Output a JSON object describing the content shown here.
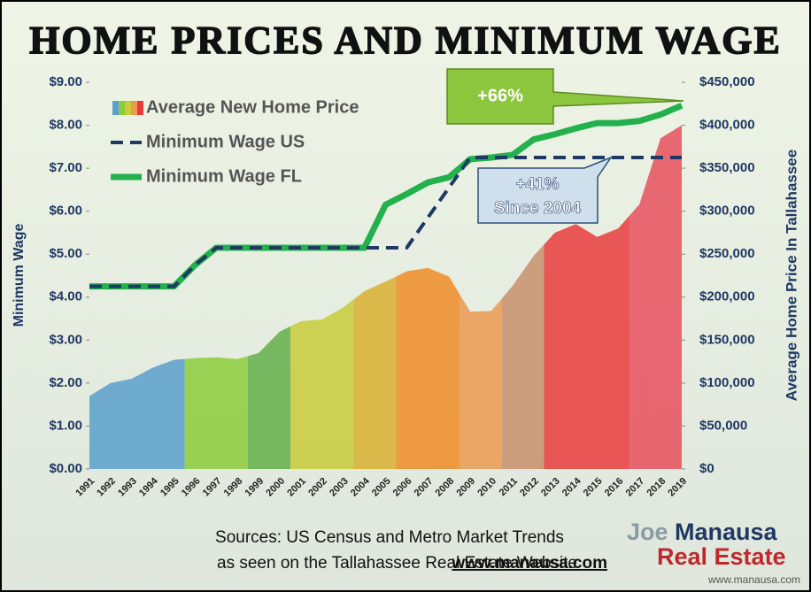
{
  "chart_data": {
    "type": "line",
    "title": "HOME PRICES AND MINIMUM WAGE",
    "ylabel": "Minimum Wage",
    "y2label": "Average Home Price In Tallahassee",
    "categories": [
      "1991",
      "1992",
      "1993",
      "1994",
      "1995",
      "1996",
      "1997",
      "1998",
      "1999",
      "2000",
      "2001",
      "2002",
      "2003",
      "2004",
      "2005",
      "2006",
      "2007",
      "2008",
      "2009",
      "2010",
      "2011",
      "2012",
      "2013",
      "2014",
      "2015",
      "2016",
      "2017",
      "2018",
      "2019"
    ],
    "ylim": [
      0,
      9
    ],
    "yticks": [
      {
        "value": 0,
        "label": "$0.00"
      },
      {
        "value": 1,
        "label": "$1.00"
      },
      {
        "value": 2,
        "label": "$2.00"
      },
      {
        "value": 3,
        "label": "$3.00"
      },
      {
        "value": 4,
        "label": "$4.00"
      },
      {
        "value": 5,
        "label": "$5.00"
      },
      {
        "value": 6,
        "label": "$6.00"
      },
      {
        "value": 7,
        "label": "$7.00"
      },
      {
        "value": 8,
        "label": "$8.00"
      },
      {
        "value": 9,
        "label": "$9.00"
      }
    ],
    "y2lim": [
      0,
      450000
    ],
    "y2ticks": [
      {
        "value": 0,
        "label": "$0"
      },
      {
        "value": 50000,
        "label": "$50,000"
      },
      {
        "value": 100000,
        "label": "$100,000"
      },
      {
        "value": 150000,
        "label": "$150,000"
      },
      {
        "value": 200000,
        "label": "$200,000"
      },
      {
        "value": 250000,
        "label": "$250,000"
      },
      {
        "value": 300000,
        "label": "$300,000"
      },
      {
        "value": 350000,
        "label": "$350,000"
      },
      {
        "value": 400000,
        "label": "$400,000"
      },
      {
        "value": 450000,
        "label": "$450,000"
      }
    ],
    "series": [
      {
        "name": "Average New Home Price",
        "type": "area",
        "axis": "y2",
        "colors": [
          "#5aa0cc",
          "#5aa0cc",
          "#5aa0cc",
          "#5aa0cc",
          "#5aa0cc",
          "#8ccc3c",
          "#8ccc3c",
          "#8ccc3c",
          "#62b04a",
          "#62b04a",
          "#c8cc3a",
          "#c8cc3a",
          "#c8cc3a",
          "#d8b030",
          "#d8b030",
          "#f08c28",
          "#f08c28",
          "#f08c28",
          "#ec9a50",
          "#ec9a50",
          "#c8906c",
          "#c8906c",
          "#e83c3c",
          "#e83c3c",
          "#e83c3c",
          "#e83c3c",
          "#e8505e",
          "#e8505e",
          "#e8505e"
        ],
        "values": [
          85000,
          100000,
          105000,
          118000,
          127000,
          129000,
          130000,
          128000,
          135000,
          160000,
          172000,
          174000,
          188000,
          207000,
          218000,
          230000,
          234000,
          224000,
          183000,
          184000,
          213000,
          248000,
          275000,
          285000,
          270000,
          280000,
          308000,
          385000,
          400000
        ]
      },
      {
        "name": "Minimum Wage US",
        "color": "#1f3864",
        "values": [
          4.25,
          4.25,
          4.25,
          4.25,
          4.25,
          4.75,
          5.15,
          5.15,
          5.15,
          5.15,
          5.15,
          5.15,
          5.15,
          5.15,
          5.15,
          5.15,
          5.85,
          6.55,
          7.25,
          7.25,
          7.25,
          7.25,
          7.25,
          7.25,
          7.25,
          7.25,
          7.25,
          7.25,
          7.25
        ]
      },
      {
        "name": "Minimum Wage FL",
        "color": "#22b14c",
        "values": [
          4.25,
          4.25,
          4.25,
          4.25,
          4.25,
          4.75,
          5.15,
          5.15,
          5.15,
          5.15,
          5.15,
          5.15,
          5.15,
          5.15,
          6.15,
          6.4,
          6.67,
          6.79,
          7.21,
          7.25,
          7.31,
          7.67,
          7.79,
          7.93,
          8.05,
          8.05,
          8.1,
          8.25,
          8.46
        ]
      }
    ],
    "annotations": [
      "+66%",
      "+41%",
      "Since 2004"
    ],
    "legend": "upper left"
  },
  "footer": {
    "source": "Sources: US Census and Metro Market Trends",
    "seen_on": "as seen on the Tallahassee Real Estate Website",
    "website": "www.manausa.com"
  },
  "logo": {
    "first": "Joe",
    "last": "Manausa",
    "tagline": "Real Estate",
    "url": "www.manausa.com"
  }
}
